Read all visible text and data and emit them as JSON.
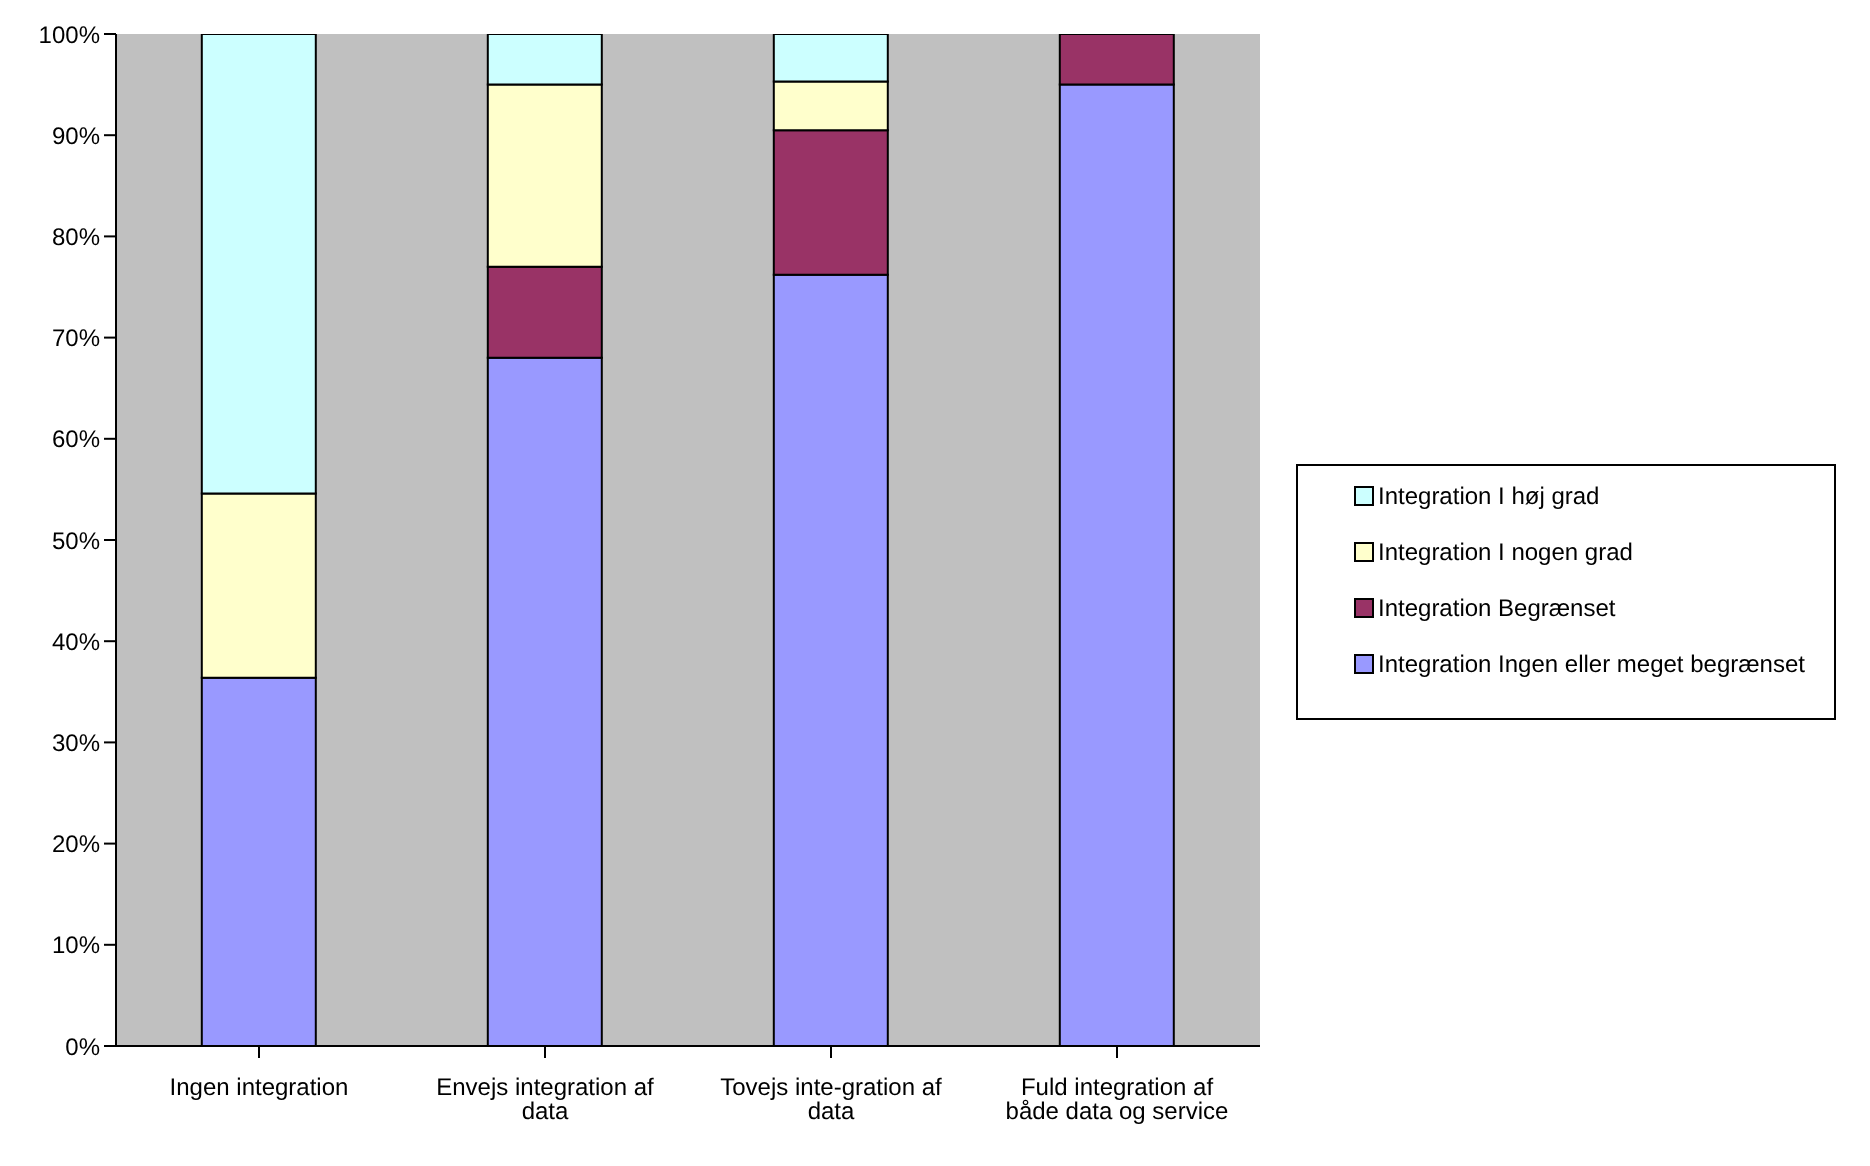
{
  "chart_data": {
    "type": "bar",
    "stacked": true,
    "categories": [
      "Ingen integration",
      "Envejs integration af data",
      "Tovejs inte-gration af data",
      "Fuld integration af både data og service"
    ],
    "series": [
      {
        "name": "Integration Ingen eller meget begrænset",
        "color": "#9999ff",
        "values": [
          36.4,
          68,
          76.2,
          95
        ]
      },
      {
        "name": "Integration Begrænset",
        "color": "#993366",
        "values": [
          0,
          9,
          14.3,
          5
        ]
      },
      {
        "name": "Integration I nogen grad",
        "color": "#ffffcc",
        "values": [
          18.2,
          18,
          4.8,
          0
        ]
      },
      {
        "name": "Integration I høj grad",
        "color": "#ccffff",
        "values": [
          45.4,
          5,
          4.7,
          0
        ]
      }
    ],
    "ylim": [
      0,
      100
    ],
    "yticks": [
      {
        "value": 0,
        "label": "0%"
      },
      {
        "value": 10,
        "label": "10%"
      },
      {
        "value": 20,
        "label": "20%"
      },
      {
        "value": 30,
        "label": "30%"
      },
      {
        "value": 40,
        "label": "40%"
      },
      {
        "value": 50,
        "label": "50%"
      },
      {
        "value": 60,
        "label": "60%"
      },
      {
        "value": 70,
        "label": "70%"
      },
      {
        "value": 80,
        "label": "80%"
      },
      {
        "value": 90,
        "label": "90%"
      },
      {
        "value": 100,
        "label": "100%"
      }
    ],
    "grid": false,
    "legend": "right"
  }
}
